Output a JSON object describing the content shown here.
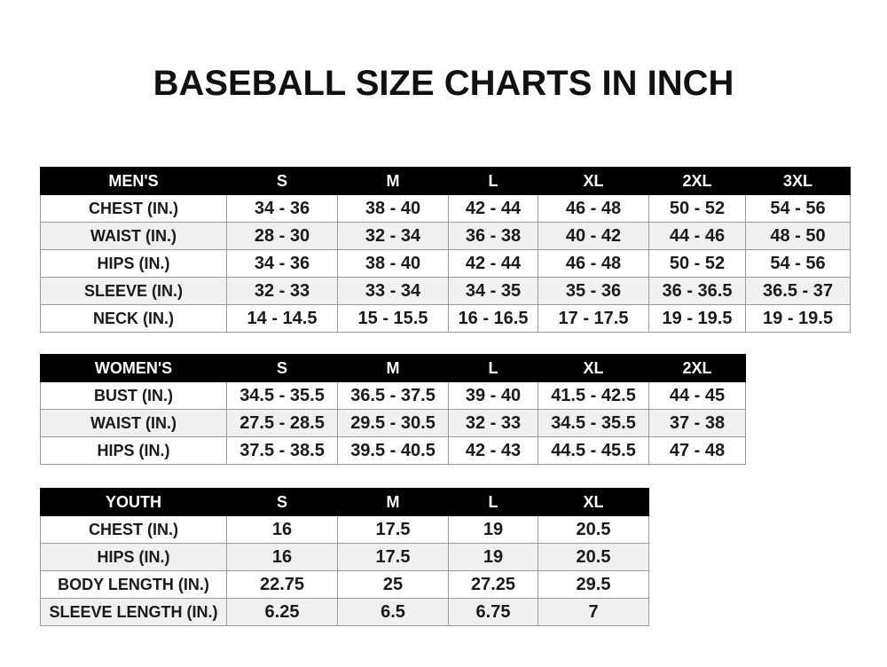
{
  "title": "BASEBALL SIZE CHARTS IN INCH",
  "tables": {
    "men": {
      "headers": [
        "MEN'S",
        "S",
        "M",
        "L",
        "XL",
        "2XL",
        "3XL"
      ],
      "rows": [
        [
          "CHEST (IN.)",
          "34 - 36",
          "38 - 40",
          "42 - 44",
          "46 - 48",
          "50 - 52",
          "54 - 56"
        ],
        [
          "WAIST (IN.)",
          "28 - 30",
          "32 - 34",
          "36 - 38",
          "40 - 42",
          "44 - 46",
          "48 - 50"
        ],
        [
          "HIPS (IN.)",
          "34 - 36",
          "38 - 40",
          "42 - 44",
          "46 - 48",
          "50 - 52",
          "54 - 56"
        ],
        [
          "SLEEVE (IN.)",
          "32 - 33",
          "33 - 34",
          "34 - 35",
          "35 - 36",
          "36 - 36.5",
          "36.5 - 37"
        ],
        [
          "NECK (IN.)",
          "14 - 14.5",
          "15 - 15.5",
          "16 - 16.5",
          "17 - 17.5",
          "19 - 19.5",
          "19 - 19.5"
        ]
      ]
    },
    "women": {
      "headers": [
        "WOMEN'S",
        "S",
        "M",
        "L",
        "XL",
        "2XL"
      ],
      "rows": [
        [
          "BUST (IN.)",
          "34.5 - 35.5",
          "36.5 - 37.5",
          "39 - 40",
          "41.5 - 42.5",
          "44 - 45"
        ],
        [
          "WAIST (IN.)",
          "27.5 - 28.5",
          "29.5 - 30.5",
          "32 - 33",
          "34.5 - 35.5",
          "37 - 38"
        ],
        [
          "HIPS (IN.)",
          "37.5 - 38.5",
          "39.5 - 40.5",
          "42 - 43",
          "44.5 - 45.5",
          "47 - 48"
        ]
      ]
    },
    "youth": {
      "headers": [
        "YOUTH",
        "S",
        "M",
        "L",
        "XL"
      ],
      "rows": [
        [
          "CHEST (IN.)",
          "16",
          "17.5",
          "19",
          "20.5"
        ],
        [
          "HIPS (IN.)",
          "16",
          "17.5",
          "19",
          "20.5"
        ],
        [
          "BODY LENGTH (IN.)",
          "22.75",
          "25",
          "27.25",
          "29.5"
        ],
        [
          "SLEEVE LENGTH (IN.)",
          "6.25",
          "6.5",
          "6.75",
          "7"
        ]
      ]
    }
  }
}
